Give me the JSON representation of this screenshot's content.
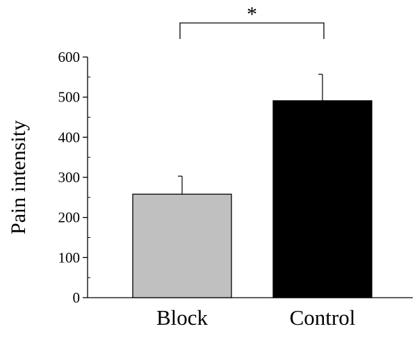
{
  "chart_data": {
    "type": "bar",
    "categories": [
      "Block",
      "Control"
    ],
    "values": [
      258,
      491
    ],
    "error_upper": [
      303,
      557
    ],
    "colors": [
      "#c0c0c0",
      "#000000"
    ],
    "title": "",
    "xlabel": "",
    "ylabel": "Pain intensity",
    "ylim": [
      0,
      600
    ],
    "yticks": [
      0,
      100,
      200,
      300,
      400,
      500,
      600
    ],
    "ytick_labels": [
      "0",
      "100",
      "200",
      "300",
      "400",
      "500",
      "600"
    ],
    "grid": false,
    "legend": "none",
    "significance": {
      "between": [
        "Block",
        "Control"
      ],
      "label": "*"
    }
  }
}
